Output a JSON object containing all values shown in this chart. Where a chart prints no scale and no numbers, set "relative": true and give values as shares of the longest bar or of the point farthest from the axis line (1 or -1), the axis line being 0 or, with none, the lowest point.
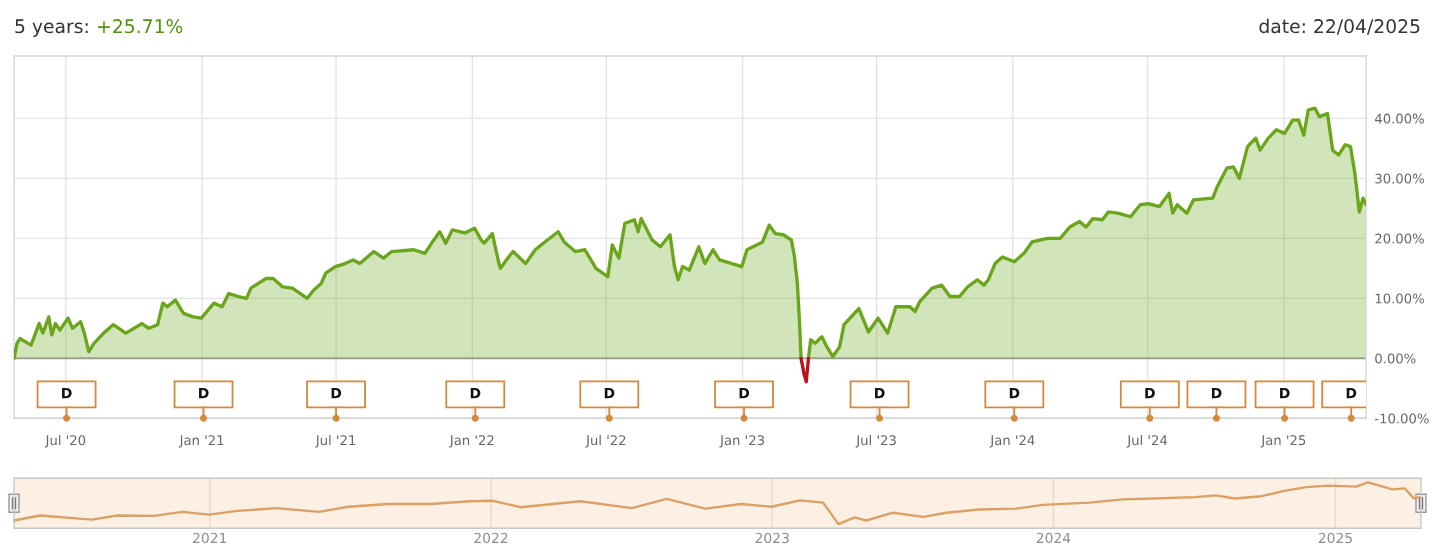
{
  "chart_data": [
    {
      "type": "area",
      "title": "5 years: +25.71%",
      "subtitle": "date: 22/04/2025",
      "series": [
        {
          "color": "#6aa51c",
          "x": [
            "2020-04-22",
            "2020-04-26",
            "2020-04-30",
            "2020-05-15",
            "2020-05-26",
            "2020-05-31",
            "2020-06-08",
            "2020-06-12",
            "2020-06-17",
            "2020-06-23",
            "2020-07-04",
            "2020-07-10",
            "2020-07-21",
            "2020-07-26",
            "2020-08-01",
            "2020-08-08",
            "2020-08-21",
            "2020-09-03",
            "2020-09-20",
            "2020-10-12",
            "2020-10-21",
            "2020-11-02",
            "2020-11-09",
            "2020-11-15",
            "2020-11-26",
            "2020-12-07",
            "2020-12-20",
            "2020-12-31",
            "2021-01-17",
            "2021-01-28",
            "2021-02-06",
            "2021-02-19",
            "2021-03-02",
            "2021-03-08",
            "2021-03-28",
            "2021-04-07",
            "2021-04-20",
            "2021-05-03",
            "2021-05-23",
            "2021-06-01",
            "2021-06-11",
            "2021-06-17",
            "2021-06-30",
            "2021-07-13",
            "2021-07-24",
            "2021-08-02",
            "2021-08-21",
            "2021-09-03",
            "2021-09-14",
            "2021-10-14",
            "2021-10-29",
            "2021-11-07",
            "2021-11-18",
            "2021-11-26",
            "2021-12-05",
            "2021-12-22",
            "2022-01-04",
            "2022-01-13",
            "2022-01-17",
            "2022-01-28",
            "2022-02-06",
            "2022-02-08",
            "2022-02-16",
            "2022-02-25",
            "2022-03-14",
            "2022-03-27",
            "2022-04-09",
            "2022-04-27",
            "2022-05-05",
            "2022-05-20",
            "2022-06-02",
            "2022-06-17",
            "2022-07-03",
            "2022-07-09",
            "2022-07-18",
            "2022-07-26",
            "2022-08-08",
            "2022-08-13",
            "2022-08-17",
            "2022-09-01",
            "2022-09-12",
            "2022-09-25",
            "2022-10-01",
            "2022-10-06",
            "2022-10-12",
            "2022-10-21",
            "2022-11-03",
            "2022-11-11",
            "2022-11-22",
            "2022-12-01",
            "2022-12-31",
            "2023-01-07",
            "2023-01-28",
            "2023-02-06",
            "2023-02-14",
            "2023-02-25",
            "2023-03-08",
            "2023-03-12",
            "2023-03-16",
            "2023-03-19",
            "2023-03-21",
            "2023-03-25",
            "2023-03-31",
            "2023-04-03",
            "2023-04-09",
            "2023-04-18",
            "2023-04-25",
            "2023-05-03",
            "2023-05-12",
            "2023-05-18",
            "2023-06-07",
            "2023-06-20",
            "2023-07-03",
            "2023-07-16",
            "2023-07-27",
            "2023-08-15",
            "2023-08-22",
            "2023-08-28",
            "2023-09-14",
            "2023-09-27",
            "2023-10-08",
            "2023-10-21",
            "2023-11-01",
            "2023-11-14",
            "2023-11-23",
            "2023-11-29",
            "2023-12-08",
            "2023-12-18",
            "2024-01-03",
            "2024-01-16",
            "2024-01-27",
            "2024-02-17",
            "2024-03-05",
            "2024-03-18",
            "2024-03-31",
            "2024-04-09",
            "2024-04-18",
            "2024-05-01",
            "2024-05-09",
            "2024-05-22",
            "2024-06-08",
            "2024-06-21",
            "2024-07-02",
            "2024-07-17",
            "2024-07-30",
            "2024-08-04",
            "2024-08-10",
            "2024-08-23",
            "2024-09-01",
            "2024-09-27",
            "2024-10-03",
            "2024-10-16",
            "2024-10-25",
            "2024-11-02",
            "2024-11-13",
            "2024-11-24",
            "2024-11-30",
            "2024-12-11",
            "2024-12-22",
            "2025-01-02",
            "2025-01-13",
            "2025-01-21",
            "2025-01-28",
            "2025-02-03",
            "2025-02-12",
            "2025-02-18",
            "2025-03-01",
            "2025-03-08",
            "2025-03-16",
            "2025-03-25",
            "2025-04-01",
            "2025-04-07",
            "2025-04-13",
            "2025-04-18",
            "2025-04-22"
          ],
          "values": [
            0,
            2.5,
            3.3,
            2.2,
            5.8,
            4.2,
            6.9,
            3.9,
            5.8,
            4.7,
            6.7,
            5.0,
            6.1,
            4.2,
            1.1,
            2.5,
            4.2,
            5.6,
            4.2,
            5.8,
            5.0,
            5.6,
            9.2,
            8.6,
            9.7,
            7.5,
            6.9,
            6.7,
            9.2,
            8.6,
            10.8,
            10.3,
            10.0,
            11.7,
            13.3,
            13.3,
            11.9,
            11.7,
            10.0,
            11.4,
            12.5,
            14.2,
            15.3,
            15.8,
            16.4,
            15.8,
            17.8,
            16.7,
            17.8,
            18.1,
            17.5,
            19.2,
            21.1,
            19.2,
            21.4,
            20.9,
            21.7,
            19.7,
            19.2,
            20.8,
            15.8,
            15.0,
            16.4,
            17.8,
            15.8,
            18.1,
            19.4,
            21.1,
            19.4,
            17.8,
            18.1,
            15.0,
            13.6,
            18.9,
            16.7,
            22.5,
            23.1,
            21.1,
            23.3,
            19.7,
            18.6,
            20.6,
            15.3,
            13.1,
            15.3,
            14.7,
            18.6,
            15.8,
            18.1,
            16.4,
            15.3,
            18.1,
            19.4,
            22.2,
            20.8,
            20.6,
            19.7,
            17.0,
            12.5,
            5.8,
            0,
            null,
            0,
            3.1,
            2.5,
            3.6,
            1.9,
            0.3,
            1.9,
            5.6,
            8.3,
            4.4,
            6.7,
            4.2,
            8.6,
            8.6,
            7.8,
            9.4,
            11.7,
            12.2,
            10.3,
            10.3,
            11.9,
            13.1,
            12.2,
            13.1,
            15.8,
            16.9,
            16.1,
            17.5,
            19.4,
            20.0,
            20.0,
            21.9,
            22.8,
            21.9,
            23.3,
            23.1,
            24.4,
            24.2,
            23.6,
            25.6,
            25.8,
            25.3,
            27.5,
            24.2,
            25.6,
            24.2,
            26.4,
            26.7,
            28.6,
            31.7,
            31.9,
            30.0,
            35.3,
            36.7,
            34.7,
            36.7,
            38.1,
            37.5,
            39.7,
            39.7,
            37.2,
            41.4,
            41.7,
            40.3,
            40.8,
            34.7,
            33.9,
            35.6,
            35.3,
            30.8,
            24.4,
            26.7,
            25.7
          ]
        },
        {
          "type": "line",
          "color": "#b8141d",
          "x": [
            "2023-03-21",
            "2023-03-25",
            "2023-03-28",
            "2023-03-31"
          ],
          "values": [
            0,
            -2.6,
            -3.9,
            0
          ]
        },
        {
          "type": "scatter",
          "color": "#d4893b",
          "marker": "circle",
          "x": [
            "2020-07-02",
            "2021-01-03",
            "2021-07-01",
            "2022-01-05",
            "2022-07-05",
            "2023-01-03",
            "2023-07-05",
            "2024-01-03",
            "2024-07-04",
            "2024-10-02",
            "2025-01-02",
            "2025-04-02"
          ],
          "values": [
            -10,
            -10,
            -10,
            -10,
            -10,
            -10,
            -10,
            -10,
            -10,
            -10,
            -10,
            -10
          ],
          "value_labels": [
            "D",
            "D",
            "D",
            "D",
            "D",
            "D",
            "D",
            "D",
            "D",
            "D",
            "D",
            "D"
          ]
        }
      ],
      "xlim": [
        "2020-04-22",
        "2025-04-22"
      ],
      "xticks": [
        {
          "value": "2020-07-01",
          "label": "Jul '20"
        },
        {
          "value": "2021-01-01",
          "label": "Jan '21"
        },
        {
          "value": "2021-07-01",
          "label": "Jul '21"
        },
        {
          "value": "2022-01-01",
          "label": "Jan '22"
        },
        {
          "value": "2022-07-01",
          "label": "Jul '22"
        },
        {
          "value": "2023-01-01",
          "label": "Jan '23"
        },
        {
          "value": "2023-07-01",
          "label": "Jul '23"
        },
        {
          "value": "2024-01-01",
          "label": "Jan '24"
        },
        {
          "value": "2024-07-01",
          "label": "Jul '24"
        },
        {
          "value": "2025-01-01",
          "label": "Jan '25"
        }
      ],
      "ylim": [
        -10,
        50.4
      ],
      "yticks": [
        {
          "value": -10,
          "label": "-10.00%"
        },
        {
          "value": 0,
          "label": "0.00%"
        },
        {
          "value": 10,
          "label": "10.00%"
        },
        {
          "value": 20,
          "label": "20.00%"
        },
        {
          "value": 30,
          "label": "30.00%"
        },
        {
          "value": 40,
          "label": "40.00%"
        }
      ],
      "grid": true,
      "ref_lines": [
        {
          "axis": "y",
          "value": 0,
          "color": "#9a9a9a"
        }
      ]
    },
    {
      "type": "line",
      "relative": true,
      "color": "#dca064",
      "x": [
        "2020-04-22",
        "2020-05-26",
        "2020-08-01",
        "2020-09-03",
        "2020-10-21",
        "2020-11-26",
        "2020-12-31",
        "2021-02-06",
        "2021-03-28",
        "2021-05-23",
        "2021-06-30",
        "2021-08-21",
        "2021-10-14",
        "2021-12-05",
        "2022-01-04",
        "2022-02-08",
        "2022-04-27",
        "2022-07-03",
        "2022-08-17",
        "2022-10-06",
        "2022-11-22",
        "2022-12-31",
        "2023-02-06",
        "2023-03-08",
        "2023-03-28",
        "2023-04-18",
        "2023-05-03",
        "2023-06-07",
        "2023-07-16",
        "2023-08-15",
        "2023-09-27",
        "2023-11-14",
        "2023-12-18",
        "2024-02-17",
        "2024-03-31",
        "2024-05-09",
        "2024-07-02",
        "2024-07-30",
        "2024-08-23",
        "2024-09-27",
        "2024-10-25",
        "2024-11-24",
        "2024-12-22",
        "2025-01-28",
        "2025-02-12",
        "2025-03-16",
        "2025-04-01",
        "2025-04-13",
        "2025-04-22"
      ],
      "values": [
        0.17,
        0.28,
        0.19,
        0.28,
        0.27,
        0.36,
        0.3,
        0.38,
        0.44,
        0.36,
        0.47,
        0.53,
        0.53,
        0.59,
        0.6,
        0.46,
        0.59,
        0.44,
        0.64,
        0.43,
        0.53,
        0.47,
        0.61,
        0.56,
        0.09,
        0.24,
        0.17,
        0.34,
        0.25,
        0.34,
        0.41,
        0.43,
        0.51,
        0.56,
        0.63,
        0.65,
        0.68,
        0.72,
        0.65,
        0.7,
        0.81,
        0.9,
        0.93,
        0.91,
        1.0,
        0.85,
        0.87,
        0.65,
        0.68
      ],
      "xlim": [
        "2020-04-22",
        "2025-04-22"
      ],
      "xticks": [
        {
          "value": "2021-01-01",
          "label": "2021"
        },
        {
          "value": "2022-01-01",
          "label": "2022"
        },
        {
          "value": "2023-01-01",
          "label": "2023"
        },
        {
          "value": "2024-01-01",
          "label": "2024"
        },
        {
          "value": "2025-01-01",
          "label": "2025"
        }
      ],
      "grid": "x",
      "tick_labels": "x"
    }
  ]
}
